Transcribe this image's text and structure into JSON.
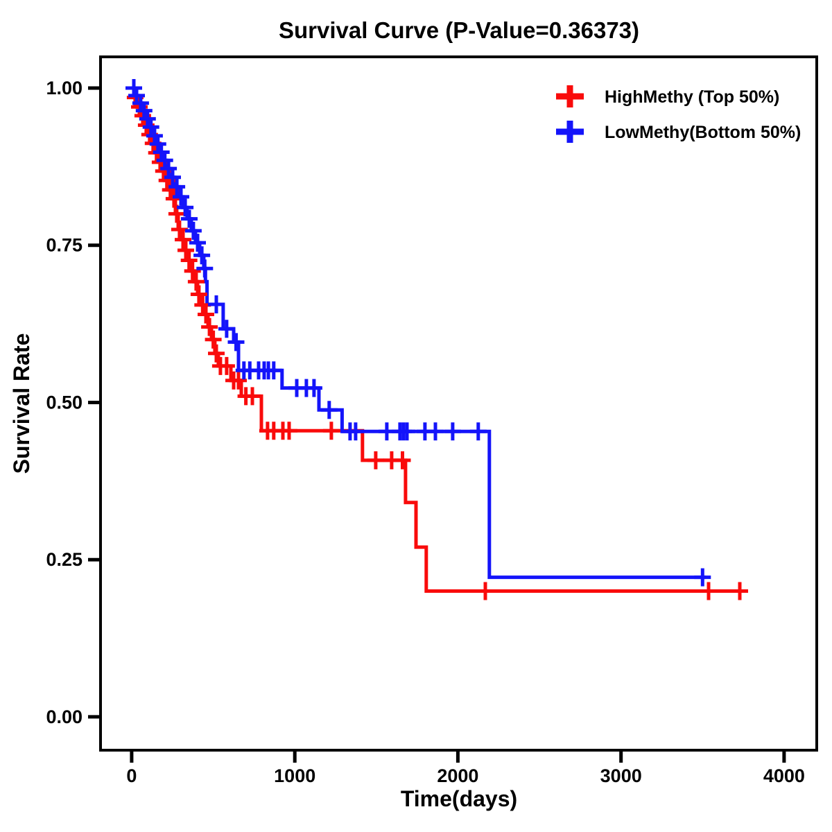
{
  "title": "Survival Curve (P-Value=0.36373)",
  "p_value": "0.36373",
  "legend": {
    "position": "upper right",
    "items": [
      {
        "label": "HighMethy (Top 50%)",
        "color": "#F90B0B",
        "marker": "plus-icon"
      },
      {
        "label": "LowMethy(Bottom 50%)",
        "color": "#1414FA",
        "marker": "plus-icon"
      }
    ]
  },
  "chart_data": {
    "type": "line",
    "subtype": "kaplan_meier_step_curve",
    "title": "Survival Curve (P-Value=0.36373)",
    "xlabel": "Time(days)",
    "ylabel": "Survival Rate",
    "x_ticks": [
      0,
      1000,
      2000,
      3000,
      4000
    ],
    "y_ticks": [
      1.0,
      0.75,
      0.5,
      0.25,
      0.0
    ],
    "xlim": [
      -191,
      4200
    ],
    "ylim": [
      -0.053,
      1.0496
    ],
    "grid": false,
    "legend_position": "upper right",
    "series": [
      {
        "name": "HighMethy (Top 50%)",
        "color": "#F90B0B",
        "steps": [
          [
            0,
            1.0
          ],
          [
            13,
            0.985
          ],
          [
            34,
            0.97
          ],
          [
            55,
            0.956
          ],
          [
            76,
            0.941
          ],
          [
            98,
            0.926
          ],
          [
            119,
            0.912
          ],
          [
            140,
            0.897
          ],
          [
            161,
            0.882
          ],
          [
            183,
            0.868
          ],
          [
            204,
            0.853
          ],
          [
            225,
            0.838
          ],
          [
            246,
            0.824
          ],
          [
            268,
            0.8
          ],
          [
            285,
            0.775
          ],
          [
            302,
            0.759
          ],
          [
            323,
            0.742
          ],
          [
            340,
            0.726
          ],
          [
            361,
            0.709
          ],
          [
            382,
            0.692
          ],
          [
            404,
            0.672
          ],
          [
            425,
            0.655
          ],
          [
            447,
            0.64
          ],
          [
            468,
            0.62
          ],
          [
            489,
            0.6
          ],
          [
            510,
            0.578
          ],
          [
            531,
            0.558
          ],
          [
            608,
            0.535
          ],
          [
            672,
            0.51
          ],
          [
            795,
            0.455
          ],
          [
            1415,
            0.408
          ],
          [
            1679,
            0.341
          ],
          [
            1743,
            0.27
          ],
          [
            1806,
            0.2
          ],
          [
            3774,
            0.2
          ]
        ],
        "censor_days": [
          21,
          47,
          68,
          89,
          110,
          131,
          152,
          174,
          195,
          216,
          237,
          259,
          276,
          293,
          315,
          332,
          352,
          373,
          395,
          412,
          435,
          455,
          477,
          500,
          519,
          544,
          582,
          625,
          655,
          700,
          740,
          833,
          871,
          927,
          965,
          1224,
          1496,
          1594,
          1660,
          2168,
          3537,
          3728
        ]
      },
      {
        "name": "LowMethy(Bottom 50%)",
        "color": "#1414FA",
        "steps": [
          [
            0,
            1.0
          ],
          [
            21,
            0.988
          ],
          [
            42,
            0.976
          ],
          [
            64,
            0.964
          ],
          [
            85,
            0.951
          ],
          [
            106,
            0.938
          ],
          [
            128,
            0.924
          ],
          [
            149,
            0.911
          ],
          [
            170,
            0.898
          ],
          [
            191,
            0.885
          ],
          [
            213,
            0.872
          ],
          [
            238,
            0.858
          ],
          [
            264,
            0.843
          ],
          [
            289,
            0.827
          ],
          [
            315,
            0.81
          ],
          [
            340,
            0.792
          ],
          [
            366,
            0.773
          ],
          [
            391,
            0.754
          ],
          [
            417,
            0.734
          ],
          [
            442,
            0.713
          ],
          [
            452,
            0.692
          ],
          [
            462,
            0.656
          ],
          [
            561,
            0.617
          ],
          [
            625,
            0.596
          ],
          [
            655,
            0.551
          ],
          [
            922,
            0.523
          ],
          [
            1148,
            0.488
          ],
          [
            1290,
            0.454
          ],
          [
            2193,
            0.222
          ],
          [
            3520,
            0.222
          ]
        ],
        "censor_days": [
          13,
          30,
          55,
          76,
          97,
          118,
          140,
          161,
          182,
          203,
          226,
          251,
          277,
          302,
          328,
          353,
          378,
          404,
          430,
          448,
          519,
          582,
          640,
          688,
          724,
          778,
          812,
          838,
          871,
          1012,
          1071,
          1118,
          1211,
          1339,
          1373,
          1564,
          1645,
          1666,
          1688,
          1798,
          1862,
          1968,
          2125,
          3500
        ]
      }
    ]
  }
}
